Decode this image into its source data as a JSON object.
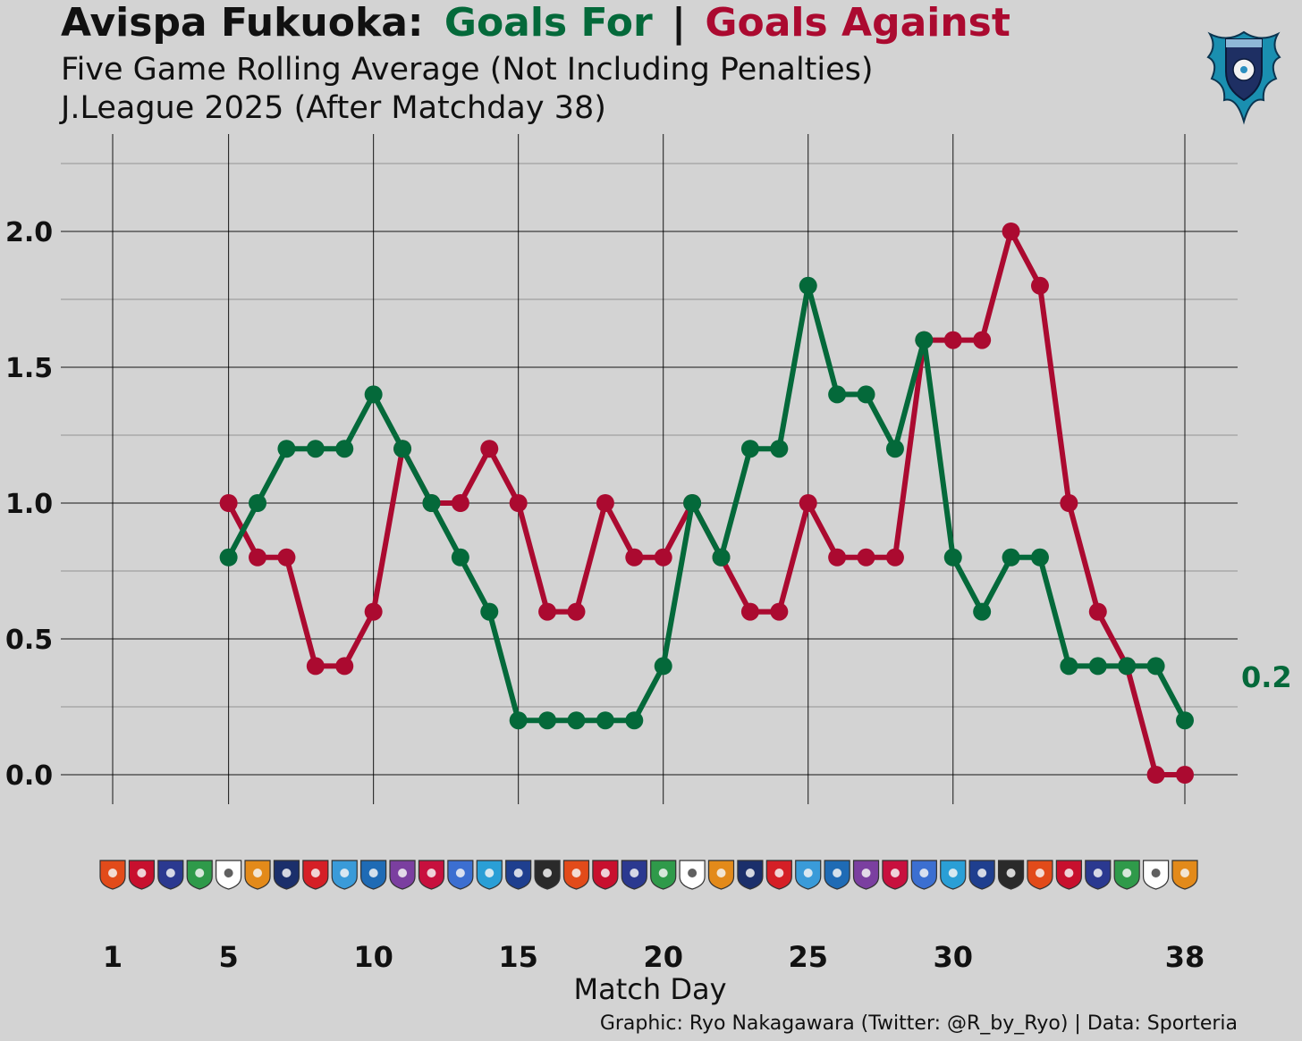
{
  "header": {
    "title_team": "Avispa Fukuoka:",
    "title_for": "Goals For",
    "title_sep": "|",
    "title_against": "Goals Against",
    "subtitle1": "Five Game Rolling Average (Not Including Penalties)",
    "subtitle2": "J.League 2025 (After Matchday 38)"
  },
  "colors": {
    "background": "#d3d3d3",
    "goals_for": "#04693a",
    "goals_against": "#ab0a30",
    "text": "#111111",
    "crest": "#1a8fb0"
  },
  "footer": {
    "xlabel": "Match Day",
    "credit": "Graphic: Ryo Nakagawara (Twitter: @R_by_Ryo) | Data: Sporteria"
  },
  "crest_icon": "avispa-fukuoka-crest-icon",
  "opponent_logo_icon": "club-crest-icon",
  "chart_data": {
    "type": "line",
    "x": [
      5,
      6,
      7,
      8,
      9,
      10,
      11,
      12,
      13,
      14,
      15,
      16,
      17,
      18,
      19,
      20,
      21,
      22,
      23,
      24,
      25,
      26,
      27,
      28,
      29,
      30,
      31,
      32,
      33,
      34,
      35,
      36,
      37,
      38
    ],
    "series": [
      {
        "name": "Goals For",
        "values": [
          0.8,
          1.0,
          1.2,
          1.2,
          1.2,
          1.4,
          1.2,
          1.0,
          0.8,
          0.6,
          0.2,
          0.2,
          0.2,
          0.2,
          0.2,
          0.4,
          1.0,
          0.8,
          1.2,
          1.2,
          1.8,
          1.4,
          1.4,
          1.2,
          1.6,
          0.8,
          0.6,
          0.8,
          0.8,
          0.4,
          0.4,
          0.4,
          0.4,
          0.2
        ]
      },
      {
        "name": "Goals Against",
        "values": [
          1.0,
          0.8,
          0.8,
          0.4,
          0.4,
          0.6,
          1.2,
          1.0,
          1.0,
          1.2,
          1.0,
          0.6,
          0.6,
          1.0,
          0.8,
          0.8,
          1.0,
          0.8,
          0.6,
          0.6,
          1.0,
          0.8,
          0.8,
          0.8,
          1.6,
          1.6,
          1.6,
          2.0,
          1.8,
          1.0,
          0.6,
          0.4,
          0.0,
          0.0
        ]
      }
    ],
    "end_label": "0.2",
    "xlabel": "Match Day",
    "ylabel": "",
    "xlim": [
      1,
      38
    ],
    "ylim": [
      -0.1,
      2.25
    ],
    "x_ticks": [
      "1",
      "5",
      "10",
      "15",
      "20",
      "25",
      "30",
      "38"
    ],
    "y_ticks": [
      "0.0",
      "0.5",
      "1.0",
      "1.5",
      "2.0"
    ],
    "grid": true,
    "opponent_logos_count": 38
  }
}
